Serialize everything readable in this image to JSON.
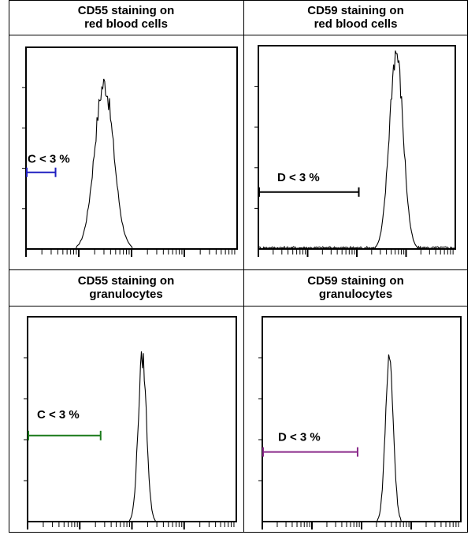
{
  "chart_data": [
    {
      "type": "histogram",
      "title_lines": [
        "CD55 staining on",
        "red blood cells"
      ],
      "xscale": "log",
      "peak_position": 0.37,
      "peak_width": 0.045,
      "peak_height": 0.82,
      "gate": {
        "label": "C  < 3 %",
        "from": 0.0,
        "to": 0.14,
        "color": "#1f1fc0"
      }
    },
    {
      "type": "histogram",
      "title_lines": [
        "CD59 staining on",
        "red blood cells"
      ],
      "xscale": "log",
      "peak_position": 0.7,
      "peak_width": 0.035,
      "peak_height": 0.97,
      "gate": {
        "label": "D  < 3 %",
        "from": 0.0,
        "to": 0.51,
        "color": "#000000"
      }
    },
    {
      "type": "histogram",
      "title_lines": [
        "CD55 staining on",
        "granulocytes"
      ],
      "xscale": "log",
      "peak_position": 0.55,
      "peak_width": 0.02,
      "peak_height": 0.8,
      "gate": {
        "label": "C  < 3 %",
        "from": 0.0,
        "to": 0.35,
        "color": "#1a7a1a"
      }
    },
    {
      "type": "histogram",
      "title_lines": [
        "CD59 staining on",
        "granulocytes"
      ],
      "xscale": "log",
      "peak_position": 0.64,
      "peak_width": 0.02,
      "peak_height": 0.8,
      "gate": {
        "label": "D  < 3 %",
        "from": 0.0,
        "to": 0.48,
        "color": "#8a2a8a"
      }
    }
  ]
}
